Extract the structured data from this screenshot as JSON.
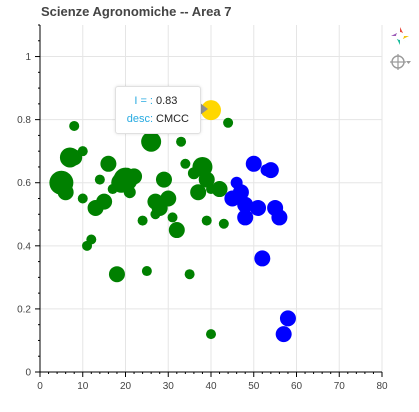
{
  "title": "Scienze Agronomiche -- Area 7",
  "tooltip": {
    "key1": "I = :",
    "value1": "0.83",
    "key2": "desc:",
    "value2": "CMCC"
  },
  "toolbar": {
    "logo_icon": "bokeh-logo-icon",
    "hover_icon": "crosshair-hover-icon"
  },
  "colors": {
    "green": "#008000",
    "blue": "#0000ff",
    "highlight": "#ffd700",
    "tooltip_key": "#26aae1"
  },
  "chart_data": {
    "type": "scatter",
    "title": "Scienze Agronomiche -- Area 7",
    "xlabel": "",
    "ylabel": "",
    "xlim": [
      0,
      80
    ],
    "ylim": [
      0,
      1.1
    ],
    "xticks": [
      0,
      10,
      20,
      30,
      40,
      50,
      60,
      70,
      80
    ],
    "yticks": [
      0,
      0.2,
      0.4,
      0.6,
      0.8,
      1
    ],
    "grid": true,
    "series": [
      {
        "color": "#008000",
        "points": [
          [
            5,
            0.6,
            12
          ],
          [
            6,
            0.57,
            8
          ],
          [
            7,
            0.68,
            10
          ],
          [
            8,
            0.68,
            8
          ],
          [
            8,
            0.78,
            5
          ],
          [
            10,
            0.7,
            5
          ],
          [
            10,
            0.55,
            5
          ],
          [
            11,
            0.4,
            5
          ],
          [
            12,
            0.42,
            5
          ],
          [
            13,
            0.52,
            8
          ],
          [
            14,
            0.61,
            5
          ],
          [
            15,
            0.54,
            8
          ],
          [
            16,
            0.66,
            8
          ],
          [
            17,
            0.58,
            5
          ],
          [
            18,
            0.31,
            8
          ],
          [
            19,
            0.6,
            10
          ],
          [
            20,
            0.61,
            12
          ],
          [
            21,
            0.57,
            6
          ],
          [
            22,
            0.62,
            8
          ],
          [
            24,
            0.48,
            5
          ],
          [
            25,
            0.32,
            5
          ],
          [
            26,
            0.73,
            10
          ],
          [
            27,
            0.54,
            8
          ],
          [
            27,
            0.5,
            5
          ],
          [
            28,
            0.52,
            8
          ],
          [
            29,
            0.61,
            8
          ],
          [
            30,
            0.55,
            8
          ],
          [
            31,
            0.49,
            5
          ],
          [
            32,
            0.45,
            8
          ],
          [
            33,
            0.73,
            5
          ],
          [
            34,
            0.66,
            5
          ],
          [
            35,
            0.31,
            5
          ],
          [
            36,
            0.63,
            6
          ],
          [
            37,
            0.57,
            8
          ],
          [
            38,
            0.65,
            10
          ],
          [
            39,
            0.61,
            8
          ],
          [
            39,
            0.48,
            5
          ],
          [
            40,
            0.58,
            5
          ],
          [
            40,
            0.12,
            5
          ],
          [
            42,
            0.58,
            8
          ],
          [
            43,
            0.47,
            5
          ],
          [
            44,
            0.79,
            5
          ]
        ]
      },
      {
        "color": "#0000ff",
        "points": [
          [
            45,
            0.55,
            8
          ],
          [
            46,
            0.6,
            6
          ],
          [
            47,
            0.57,
            8
          ],
          [
            48,
            0.53,
            8
          ],
          [
            48,
            0.49,
            8
          ],
          [
            50,
            0.66,
            8
          ],
          [
            51,
            0.52,
            8
          ],
          [
            52,
            0.36,
            8
          ],
          [
            53,
            0.64,
            6
          ],
          [
            54,
            0.64,
            8
          ],
          [
            55,
            0.52,
            8
          ],
          [
            56,
            0.49,
            8
          ],
          [
            57,
            0.12,
            8
          ],
          [
            58,
            0.17,
            8
          ]
        ]
      },
      {
        "color": "#ffd700",
        "points": [
          [
            40,
            0.83,
            10
          ]
        ]
      }
    ]
  }
}
